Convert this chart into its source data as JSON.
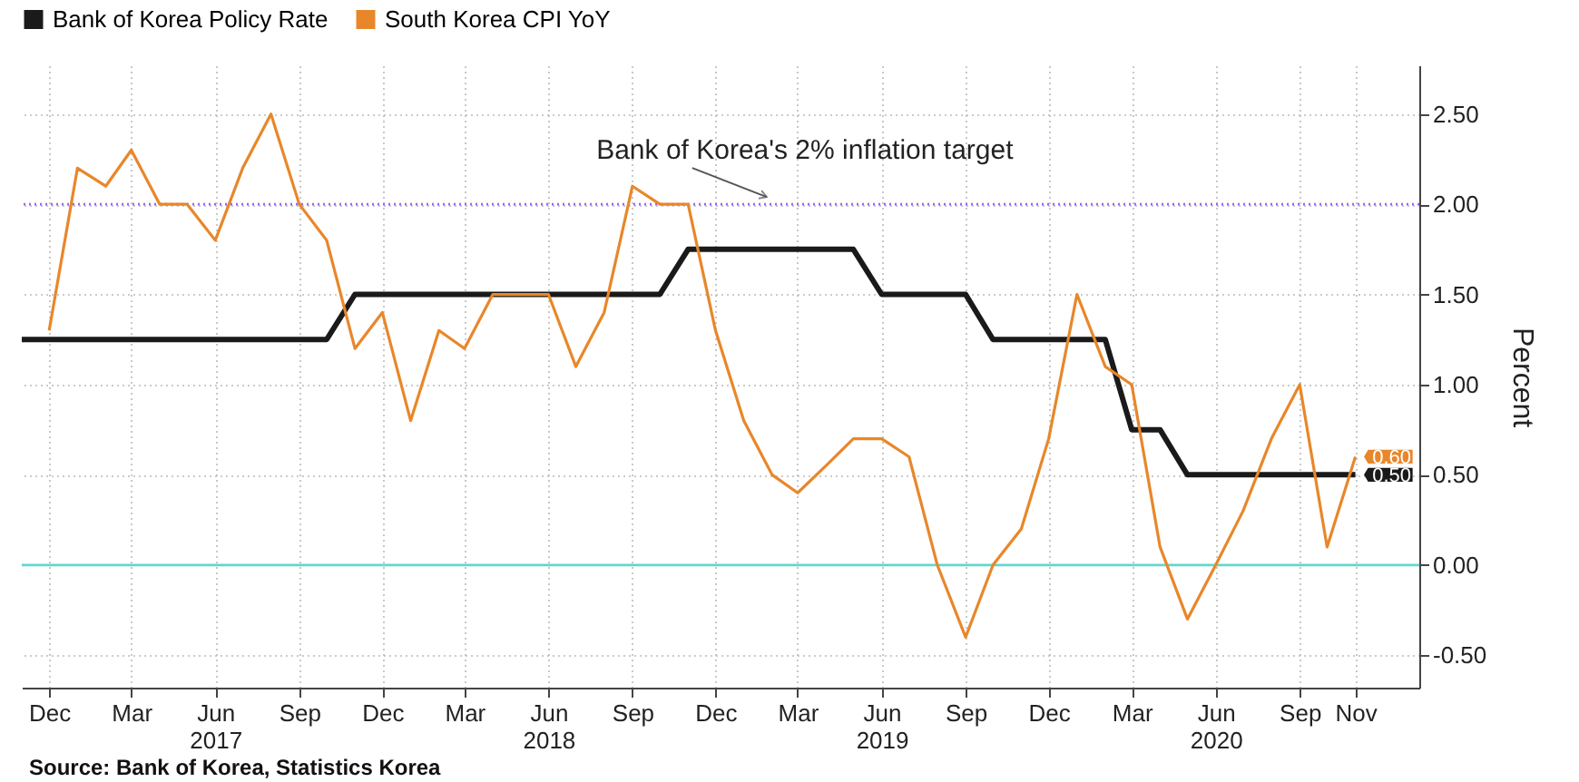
{
  "chart_data": {
    "type": "line",
    "series": [
      {
        "name": "Bank of Korea Policy Rate",
        "color": "#1a1a1a",
        "x": [
          "2016-11",
          "2016-12",
          "2017-01",
          "2017-02",
          "2017-03",
          "2017-04",
          "2017-05",
          "2017-06",
          "2017-07",
          "2017-08",
          "2017-09",
          "2017-10",
          "2017-11",
          "2017-12",
          "2018-01",
          "2018-02",
          "2018-03",
          "2018-04",
          "2018-05",
          "2018-06",
          "2018-07",
          "2018-08",
          "2018-09",
          "2018-10",
          "2018-11",
          "2018-12",
          "2019-01",
          "2019-02",
          "2019-03",
          "2019-04",
          "2019-05",
          "2019-06",
          "2019-07",
          "2019-08",
          "2019-09",
          "2019-10",
          "2019-11",
          "2019-12",
          "2020-01",
          "2020-02",
          "2020-03",
          "2020-04",
          "2020-05",
          "2020-06",
          "2020-07",
          "2020-08",
          "2020-09",
          "2020-10",
          "2020-11"
        ],
        "values": [
          1.25,
          1.25,
          1.25,
          1.25,
          1.25,
          1.25,
          1.25,
          1.25,
          1.25,
          1.25,
          1.25,
          1.25,
          1.5,
          1.5,
          1.5,
          1.5,
          1.5,
          1.5,
          1.5,
          1.5,
          1.5,
          1.5,
          1.5,
          1.5,
          1.75,
          1.75,
          1.75,
          1.75,
          1.75,
          1.75,
          1.75,
          1.5,
          1.5,
          1.5,
          1.5,
          1.25,
          1.25,
          1.25,
          1.25,
          1.25,
          0.75,
          0.75,
          0.5,
          0.5,
          0.5,
          0.5,
          0.5,
          0.5,
          0.5
        ],
        "value_labels": [
          null,
          null,
          null,
          null,
          null,
          null,
          null,
          null,
          null,
          null,
          null,
          null,
          null,
          null,
          null,
          null,
          null,
          null,
          null,
          null,
          null,
          null,
          null,
          null,
          null,
          null,
          null,
          null,
          null,
          null,
          null,
          null,
          null,
          null,
          null,
          null,
          null,
          null,
          null,
          null,
          null,
          null,
          null,
          null,
          null,
          null,
          null,
          null,
          "0.50"
        ]
      },
      {
        "name": "South Korea CPI YoY",
        "color": "#e8872a",
        "x": [
          "2016-12",
          "2017-01",
          "2017-02",
          "2017-03",
          "2017-04",
          "2017-05",
          "2017-06",
          "2017-07",
          "2017-08",
          "2017-09",
          "2017-10",
          "2017-11",
          "2017-12",
          "2018-01",
          "2018-02",
          "2018-03",
          "2018-04",
          "2018-05",
          "2018-06",
          "2018-07",
          "2018-08",
          "2018-09",
          "2018-10",
          "2018-11",
          "2018-12",
          "2019-01",
          "2019-02",
          "2019-03",
          "2019-04",
          "2019-05",
          "2019-06",
          "2019-07",
          "2019-08",
          "2019-09",
          "2019-10",
          "2019-11",
          "2019-12",
          "2020-01",
          "2020-02",
          "2020-03",
          "2020-04",
          "2020-05",
          "2020-06",
          "2020-07",
          "2020-08",
          "2020-09",
          "2020-10",
          "2020-11"
        ],
        "values": [
          1.3,
          2.2,
          2.1,
          2.3,
          2.0,
          2.0,
          1.8,
          2.2,
          2.5,
          2.0,
          1.8,
          1.2,
          1.4,
          0.8,
          1.3,
          1.2,
          1.5,
          1.5,
          1.5,
          1.1,
          1.4,
          2.1,
          2.0,
          2.0,
          1.3,
          0.8,
          0.5,
          0.4,
          0.55,
          0.7,
          0.7,
          0.6,
          0.0,
          -0.4,
          0.0,
          0.2,
          0.7,
          1.5,
          1.1,
          1.0,
          0.1,
          -0.3,
          0.0,
          0.3,
          0.7,
          1.0,
          0.1,
          0.6
        ],
        "value_labels": [
          null,
          null,
          null,
          null,
          null,
          null,
          null,
          null,
          null,
          null,
          null,
          null,
          null,
          null,
          null,
          null,
          null,
          null,
          null,
          null,
          null,
          null,
          null,
          null,
          null,
          null,
          null,
          null,
          null,
          null,
          null,
          null,
          null,
          null,
          null,
          null,
          null,
          null,
          null,
          null,
          null,
          null,
          null,
          null,
          null,
          null,
          null,
          "0.60"
        ]
      }
    ],
    "ylabel": "Percent",
    "xlim": [
      "2016-11-01",
      "2021-01-10"
    ],
    "xticks": [
      {
        "value": "2016-12",
        "label": "Dec"
      },
      {
        "value": "2017-03",
        "label": "Mar"
      },
      {
        "value": "2017-06",
        "label": "Jun\n2017"
      },
      {
        "value": "2017-09",
        "label": "Sep"
      },
      {
        "value": "2017-12",
        "label": "Dec"
      },
      {
        "value": "2018-03",
        "label": "Mar"
      },
      {
        "value": "2018-06",
        "label": "Jun\n2018"
      },
      {
        "value": "2018-09",
        "label": "Sep"
      },
      {
        "value": "2018-12",
        "label": "Dec"
      },
      {
        "value": "2019-03",
        "label": "Mar"
      },
      {
        "value": "2019-06",
        "label": "Jun\n2019"
      },
      {
        "value": "2019-09",
        "label": "Sep"
      },
      {
        "value": "2019-12",
        "label": "Dec"
      },
      {
        "value": "2020-03",
        "label": "Mar"
      },
      {
        "value": "2020-06",
        "label": "Jun\n2020"
      },
      {
        "value": "2020-09",
        "label": "Sep"
      },
      {
        "value": "2020-11",
        "label": "Nov"
      }
    ],
    "ylim": [
      -0.68,
      2.77
    ],
    "yticks": [
      {
        "value": -0.5,
        "label": "-0.50"
      },
      {
        "value": 0,
        "label": "0.00"
      },
      {
        "value": 0.5,
        "label": "0.50"
      },
      {
        "value": 1,
        "label": "1.00"
      },
      {
        "value": 1.5,
        "label": "1.50"
      },
      {
        "value": 2,
        "label": "2.00"
      },
      {
        "value": 2.5,
        "label": "2.50"
      }
    ],
    "ref_lines": [
      {
        "axis": "y",
        "value": 2,
        "color": "#9a66ee",
        "line_style": "dotted"
      },
      {
        "axis": "y",
        "value": 0,
        "color": "#5fd8cf",
        "line_style": "solid"
      }
    ],
    "annotations": [
      {
        "text": "Bank of Korea's 2% inflation target",
        "x": "2019-02",
        "y": 2.0
      },
      "Source: Bank of Korea, Statistics Korea"
    ],
    "grid": true,
    "legend": "top left",
    "marker": "none",
    "line_style": "solid"
  }
}
